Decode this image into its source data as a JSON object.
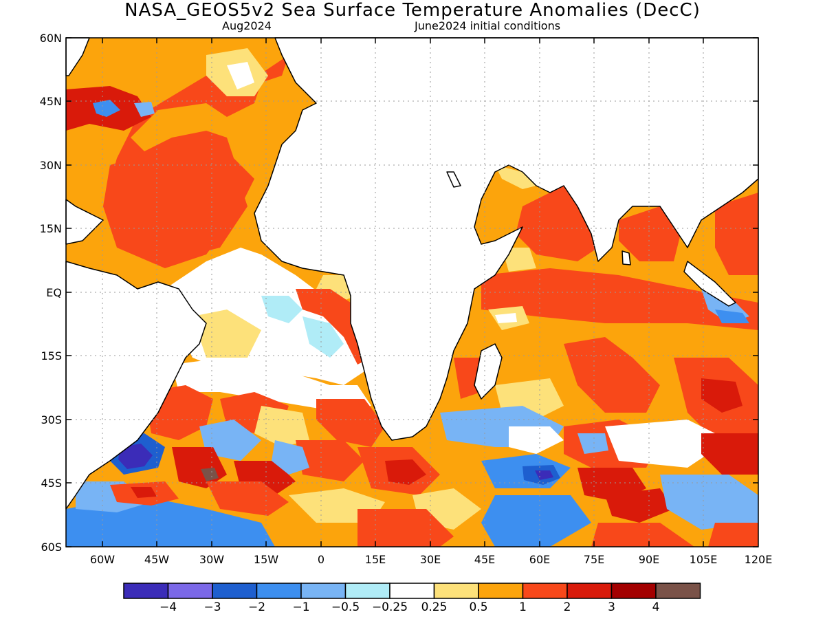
{
  "title": "NASA_GEOS5v2 Sea Surface Temperature Anomalies (DecC)",
  "subtitle_left": "Aug2024",
  "subtitle_right": "June2024 initial conditions",
  "map": {
    "lon_range": [
      -70,
      120
    ],
    "lat_range": [
      -60,
      60
    ],
    "lat_ticks": [
      "60N",
      "45N",
      "30N",
      "15N",
      "EQ",
      "15S",
      "30S",
      "45S",
      "60S"
    ],
    "lon_ticks": [
      "60W",
      "45W",
      "30W",
      "15W",
      "0",
      "15E",
      "30E",
      "45E",
      "60E",
      "75E",
      "90E",
      "105E",
      "120E"
    ],
    "grid": true
  },
  "colorbar": {
    "colors": [
      "#3b2cb8",
      "#7b68e8",
      "#1e5fcf",
      "#3d8ff0",
      "#78b4f5",
      "#b0ecf7",
      "#ffffff",
      "#fde17a",
      "#fca40c",
      "#f8481a",
      "#d91a0a",
      "#a30000",
      "#7a5248"
    ],
    "labels": [
      "−4",
      "−3",
      "−2",
      "−1",
      "−0.5",
      "−0.25",
      "0.25",
      "0.5",
      "1",
      "2",
      "3",
      "4"
    ]
  },
  "colors": {
    "land": "#ffffff",
    "coast": "#000000",
    "grid": "#9a9a9a"
  }
}
